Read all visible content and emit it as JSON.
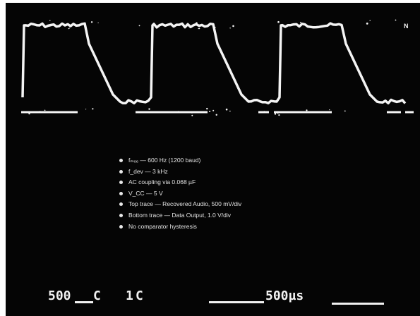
{
  "conditions": [
    "fₘₒₑ — 600 Hz (1200 baud)",
    "f_dev — 3 kHz",
    "AC coupling via 0.068 µF",
    "V_CC — 5 V",
    "Top trace — Recovered Audio, 500 mV/div",
    "Bottom trace — Data Output, 1.0 V/div",
    "No comparator hysteresis"
  ],
  "scale": {
    "volts_left": "500",
    "ch_marker": "C",
    "volts_right": "1",
    "ch_marker_2": "C",
    "time": "500µs"
  },
  "corner_mark": "N"
}
